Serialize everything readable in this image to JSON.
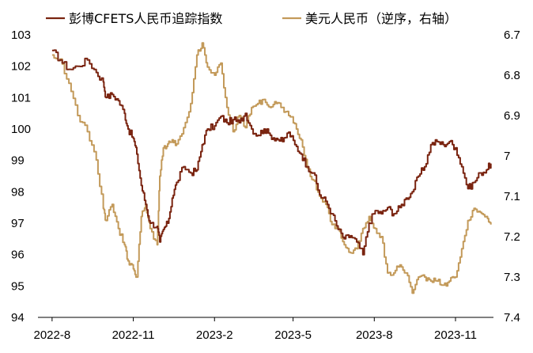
{
  "chart_data": {
    "type": "line",
    "title": "",
    "legend_position": "top",
    "grid": false,
    "x_ticks": [
      "2022-8",
      "2022-11",
      "2023-2",
      "2023-5",
      "2023-8",
      "2023-11"
    ],
    "y_left": {
      "range": [
        94,
        103
      ],
      "ticks": [
        "103",
        "102",
        "101",
        "100",
        "99",
        "98",
        "97",
        "96",
        "95",
        "94"
      ]
    },
    "y_right": {
      "range": [
        6.7,
        7.4
      ],
      "inverted": true,
      "ticks": [
        "6.7",
        "6.8",
        "6.9",
        "7",
        "7.1",
        "7.2",
        "7.3",
        "7.4"
      ]
    },
    "series": [
      {
        "name": "彭博CFETS人民币追踪指数",
        "axis": "left",
        "color": "#7a2410",
        "points": [
          [
            "2022-08-01",
            102.5
          ],
          [
            "2022-08-10",
            102.2
          ],
          [
            "2022-08-20",
            101.9
          ],
          [
            "2022-08-30",
            102.0
          ],
          [
            "2022-09-10",
            102.2
          ],
          [
            "2022-09-20",
            101.8
          ],
          [
            "2022-09-28",
            101.5
          ],
          [
            "2022-10-01",
            101.0
          ],
          [
            "2022-10-08",
            101.1
          ],
          [
            "2022-10-15",
            100.9
          ],
          [
            "2022-10-22",
            100.5
          ],
          [
            "2022-10-26",
            100.0
          ],
          [
            "2022-11-01",
            99.7
          ],
          [
            "2022-11-05",
            99.2
          ],
          [
            "2022-11-10",
            98.2
          ],
          [
            "2022-11-15",
            97.6
          ],
          [
            "2022-11-20",
            97.0
          ],
          [
            "2022-11-28",
            96.9
          ],
          [
            "2022-12-01",
            96.4
          ],
          [
            "2022-12-05",
            96.8
          ],
          [
            "2022-12-10",
            97.0
          ],
          [
            "2022-12-15",
            97.8
          ],
          [
            "2022-12-20",
            98.3
          ],
          [
            "2022-12-28",
            98.8
          ],
          [
            "2023-01-05",
            98.6
          ],
          [
            "2023-01-12",
            98.7
          ],
          [
            "2023-01-18",
            99.5
          ],
          [
            "2023-01-24",
            100.0
          ],
          [
            "2023-02-01",
            100.1
          ],
          [
            "2023-02-08",
            100.4
          ],
          [
            "2023-02-15",
            100.2
          ],
          [
            "2023-02-22",
            100.3
          ],
          [
            "2023-03-01",
            100.2
          ],
          [
            "2023-03-08",
            100.5
          ],
          [
            "2023-03-15",
            100.0
          ],
          [
            "2023-03-22",
            99.8
          ],
          [
            "2023-03-29",
            100.0
          ],
          [
            "2023-04-05",
            99.8
          ],
          [
            "2023-04-12",
            99.7
          ],
          [
            "2023-04-19",
            99.6
          ],
          [
            "2023-04-26",
            99.9
          ],
          [
            "2023-05-03",
            99.5
          ],
          [
            "2023-05-10",
            99.2
          ],
          [
            "2023-05-17",
            98.8
          ],
          [
            "2023-05-24",
            98.6
          ],
          [
            "2023-05-31",
            97.9
          ],
          [
            "2023-06-07",
            97.7
          ],
          [
            "2023-06-14",
            97.3
          ],
          [
            "2023-06-21",
            96.8
          ],
          [
            "2023-06-28",
            96.5
          ],
          [
            "2023-07-05",
            96.6
          ],
          [
            "2023-07-12",
            96.4
          ],
          [
            "2023-07-19",
            96.0
          ],
          [
            "2023-07-26",
            97.0
          ],
          [
            "2023-08-02",
            97.4
          ],
          [
            "2023-08-09",
            97.3
          ],
          [
            "2023-08-16",
            97.5
          ],
          [
            "2023-08-23",
            97.3
          ],
          [
            "2023-08-30",
            97.5
          ],
          [
            "2023-09-06",
            97.8
          ],
          [
            "2023-09-13",
            98.0
          ],
          [
            "2023-09-20",
            98.5
          ],
          [
            "2023-09-27",
            98.8
          ],
          [
            "2023-10-04",
            99.5
          ],
          [
            "2023-10-11",
            99.6
          ],
          [
            "2023-10-18",
            99.5
          ],
          [
            "2023-10-25",
            99.6
          ],
          [
            "2023-11-01",
            99.4
          ],
          [
            "2023-11-08",
            98.8
          ],
          [
            "2023-11-15",
            98.1
          ],
          [
            "2023-11-22",
            98.3
          ],
          [
            "2023-11-29",
            98.6
          ],
          [
            "2023-12-06",
            98.7
          ],
          [
            "2023-12-11",
            98.9
          ]
        ]
      },
      {
        "name": "美元人民币（逆序，右轴）",
        "axis": "right",
        "color": "#c39a5a",
        "points": [
          [
            "2022-08-01",
            6.75
          ],
          [
            "2022-08-10",
            6.76
          ],
          [
            "2022-08-20",
            6.82
          ],
          [
            "2022-08-30",
            6.9
          ],
          [
            "2022-09-10",
            6.94
          ],
          [
            "2022-09-20",
            7.01
          ],
          [
            "2022-09-28",
            7.13
          ],
          [
            "2022-10-01",
            7.16
          ],
          [
            "2022-10-08",
            7.12
          ],
          [
            "2022-10-15",
            7.18
          ],
          [
            "2022-10-22",
            7.22
          ],
          [
            "2022-10-26",
            7.26
          ],
          [
            "2022-11-01",
            7.28
          ],
          [
            "2022-11-05",
            7.3
          ],
          [
            "2022-11-10",
            7.15
          ],
          [
            "2022-11-15",
            7.12
          ],
          [
            "2022-11-20",
            7.18
          ],
          [
            "2022-11-28",
            7.22
          ],
          [
            "2022-12-01",
            7.05
          ],
          [
            "2022-12-05",
            6.98
          ],
          [
            "2022-12-10",
            6.97
          ],
          [
            "2022-12-15",
            6.96
          ],
          [
            "2022-12-20",
            6.97
          ],
          [
            "2022-12-28",
            6.93
          ],
          [
            "2023-01-05",
            6.87
          ],
          [
            "2023-01-12",
            6.75
          ],
          [
            "2023-01-18",
            6.72
          ],
          [
            "2023-01-24",
            6.78
          ],
          [
            "2023-02-01",
            6.8
          ],
          [
            "2023-02-08",
            6.77
          ],
          [
            "2023-02-15",
            6.88
          ],
          [
            "2023-02-22",
            6.94
          ],
          [
            "2023-03-01",
            6.9
          ],
          [
            "2023-03-08",
            6.93
          ],
          [
            "2023-03-15",
            6.88
          ],
          [
            "2023-03-22",
            6.87
          ],
          [
            "2023-03-29",
            6.86
          ],
          [
            "2023-04-05",
            6.88
          ],
          [
            "2023-04-12",
            6.87
          ],
          [
            "2023-04-19",
            6.88
          ],
          [
            "2023-04-26",
            6.9
          ],
          [
            "2023-05-03",
            6.92
          ],
          [
            "2023-05-10",
            6.96
          ],
          [
            "2023-05-17",
            7.03
          ],
          [
            "2023-05-24",
            7.06
          ],
          [
            "2023-05-31",
            7.1
          ],
          [
            "2023-06-07",
            7.12
          ],
          [
            "2023-06-14",
            7.17
          ],
          [
            "2023-06-21",
            7.18
          ],
          [
            "2023-06-28",
            7.22
          ],
          [
            "2023-07-05",
            7.24
          ],
          [
            "2023-07-12",
            7.23
          ],
          [
            "2023-07-19",
            7.18
          ],
          [
            "2023-07-26",
            7.15
          ],
          [
            "2023-08-02",
            7.18
          ],
          [
            "2023-08-09",
            7.2
          ],
          [
            "2023-08-16",
            7.29
          ],
          [
            "2023-08-23",
            7.29
          ],
          [
            "2023-08-30",
            7.27
          ],
          [
            "2023-09-06",
            7.29
          ],
          [
            "2023-09-13",
            7.34
          ],
          [
            "2023-09-20",
            7.3
          ],
          [
            "2023-09-27",
            7.3
          ],
          [
            "2023-10-04",
            7.31
          ],
          [
            "2023-10-11",
            7.31
          ],
          [
            "2023-10-18",
            7.32
          ],
          [
            "2023-10-25",
            7.31
          ],
          [
            "2023-11-01",
            7.3
          ],
          [
            "2023-11-08",
            7.23
          ],
          [
            "2023-11-15",
            7.16
          ],
          [
            "2023-11-22",
            7.13
          ],
          [
            "2023-11-29",
            7.14
          ],
          [
            "2023-12-06",
            7.15
          ],
          [
            "2023-12-11",
            7.17
          ]
        ]
      }
    ]
  }
}
